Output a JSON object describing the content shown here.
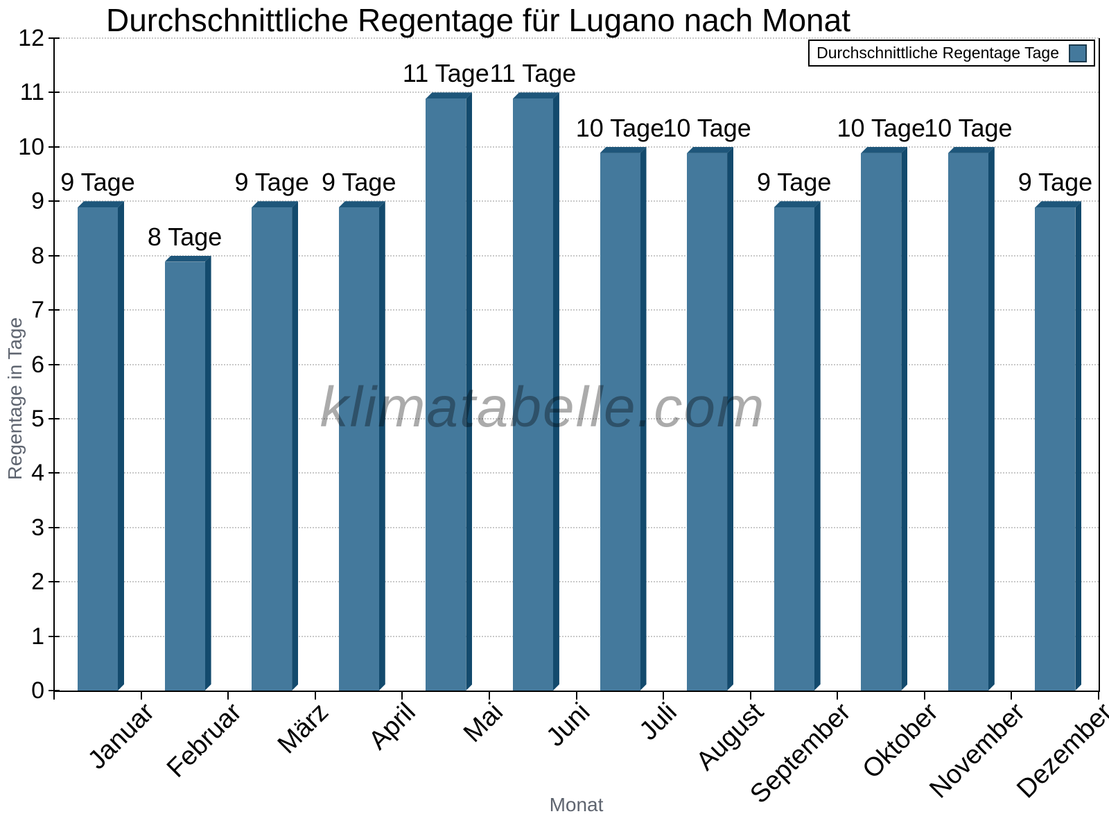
{
  "title": "Durchschnittliche Regentage für Lugano nach Monat",
  "watermark": "klimatabelle.com",
  "chart_data": {
    "type": "bar",
    "title": "Durchschnittliche Regentage für Lugano nach Monat",
    "xlabel": "Monat",
    "ylabel": "Regentage in Tage",
    "categories": [
      "Januar",
      "Februar",
      "März",
      "April",
      "Mai",
      "Juni",
      "Juli",
      "August",
      "September",
      "Oktober",
      "November",
      "Dezember"
    ],
    "values": [
      9,
      8,
      9,
      9,
      11,
      11,
      10,
      10,
      9,
      10,
      10,
      9
    ],
    "unit": "Tage",
    "value_label_format": "{value} Tage",
    "value_labels": [
      "9 Tage",
      "8 Tage",
      "9 Tage",
      "9 Tage",
      "11 Tage",
      "11 Tage",
      "10 Tage",
      "10 Tage",
      "9 Tage",
      "10 Tage",
      "10 Tage",
      "9 Tage"
    ],
    "ylim": [
      0,
      12
    ],
    "ytick_step": 1,
    "yticks": [
      0,
      1,
      2,
      3,
      4,
      5,
      6,
      7,
      8,
      9,
      10,
      11,
      12
    ],
    "grid": {
      "horizontal": true,
      "style": "dotted",
      "color": "#c9c9c9"
    },
    "legend": {
      "label": "Durchschnittliche Regentage Tage",
      "position": "top-right"
    },
    "colors": {
      "bar_front": "#44799c",
      "bar_top": "#1e567a",
      "bar_side": "#134a6d",
      "axis": "#000000",
      "tick_label": "#000000",
      "axis_title": "#5f6570",
      "watermark": "#8a8a8a",
      "background": "#ffffff"
    }
  }
}
